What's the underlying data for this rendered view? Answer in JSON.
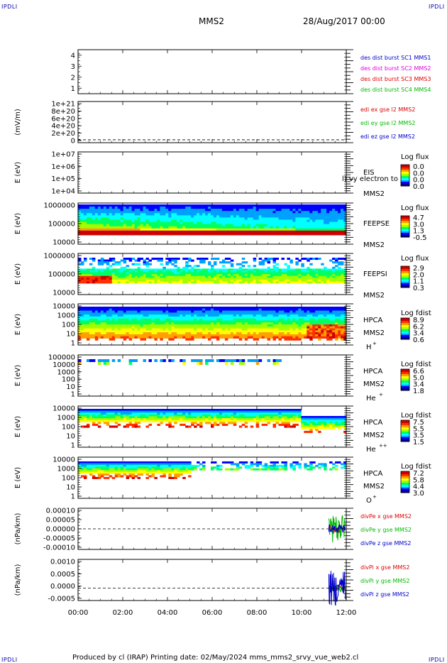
{
  "corner_label": "IPDLI",
  "header": {
    "mission": "MMS2",
    "date": "28/Aug/2017 00:00"
  },
  "footer": {
    "text": "Produced by cl (IRAP)   Printing date: 02/May/2024   mms_mms2_srvy_vue_web2.cl"
  },
  "time_axis": {
    "ticks": [
      "00:00",
      "02:00",
      "04:00",
      "06:00",
      "08:00",
      "10:00",
      "12:00"
    ]
  },
  "colors": {
    "blue": "#0000cc",
    "magenta": "#dd00dd",
    "red": "#dd0000",
    "green": "#00bb00",
    "colormap": [
      "#000080",
      "#0000ff",
      "#00a0ff",
      "#00ffff",
      "#00ff60",
      "#a0ff00",
      "#ffff00",
      "#ffa000",
      "#ff3000",
      "#cc0000"
    ]
  },
  "chart_data": [
    {
      "type": "line",
      "ylabel": "",
      "ylim": [
        0.5,
        4.5
      ],
      "yticks": [
        "4",
        "3",
        "2",
        "1"
      ],
      "legend": [
        {
          "name": "des dist burst SC1 MMS1",
          "color": "#0000cc"
        },
        {
          "name": "des dist burst SC2 MMS2",
          "color": "#dd00dd"
        },
        {
          "name": "des dist burst SC3 MMS3",
          "color": "#dd0000"
        },
        {
          "name": "des dist burst SC4 MMS4",
          "color": "#00bb00"
        }
      ]
    },
    {
      "type": "line",
      "ylabel": "(mV/m)",
      "yticks": [
        "1e+21",
        "8e+20",
        "6e+20",
        "4e+20",
        "2e+20",
        "0"
      ],
      "zero_line": true,
      "legend": [
        {
          "name": "edi ex gse l2 MMS2",
          "color": "#dd0000"
        },
        {
          "name": "edi ey gse l2 MMS2",
          "color": "#00bb00"
        },
        {
          "name": "edi ez gse l2 MMS2",
          "color": "#0000cc"
        }
      ]
    },
    {
      "type": "heatmap",
      "ylabel": "E (eV)",
      "yticks": [
        "1e+07",
        "1e+06",
        "1e+05",
        "1e+04"
      ],
      "instrument": [
        "EIS",
        "MMS2"
      ],
      "overlay_text": "l) vy electron to",
      "cbar_title": "Log flux",
      "cbar_ticks": [
        "0.0",
        "0.0",
        "0.0",
        "0.0"
      ]
    },
    {
      "type": "heatmap",
      "ylabel": "E (eV)",
      "yticks": [
        "1000000",
        "100000",
        "10000"
      ],
      "instrument": [
        "FEEPSE",
        "MMS2"
      ],
      "cbar_title": "Log flux",
      "cbar_ticks": [
        "4.7",
        "3.0",
        "1.3",
        "-0.5"
      ]
    },
    {
      "type": "heatmap",
      "ylabel": "E (eV)",
      "yticks": [
        "1000000",
        "100000",
        "10000"
      ],
      "instrument": [
        "FEEPSI",
        "MMS2"
      ],
      "cbar_title": "Log flux",
      "cbar_ticks": [
        "2.9",
        "2.0",
        "1.1",
        "0.3"
      ]
    },
    {
      "type": "heatmap",
      "ylabel": "E (eV)",
      "yticks": [
        "10000",
        "1000",
        "100",
        "10",
        "1"
      ],
      "instrument": [
        "HPCA",
        "MMS2"
      ],
      "species": "H",
      "charge": "+",
      "cbar_title": "Log fdist",
      "cbar_ticks": [
        "8.9",
        "6.2",
        "3.4",
        "0.6"
      ]
    },
    {
      "type": "heatmap",
      "ylabel": "E (eV)",
      "yticks": [
        "100000",
        "10000",
        "1000",
        "100",
        "10",
        "1"
      ],
      "instrument": [
        "HPCA",
        "MMS2"
      ],
      "species": "He",
      "charge": "+",
      "cbar_title": "Log fdist",
      "cbar_ticks": [
        "6.6",
        "5.0",
        "3.4",
        "1.8"
      ]
    },
    {
      "type": "heatmap",
      "ylabel": "E (eV)",
      "yticks": [
        "10000",
        "1000",
        "100",
        "10",
        "1"
      ],
      "instrument": [
        "HPCA",
        "MMS2"
      ],
      "species": "He",
      "charge": "++",
      "cbar_title": "Log fdist",
      "cbar_ticks": [
        "7.5",
        "5.5",
        "3.5",
        "1.5"
      ]
    },
    {
      "type": "heatmap",
      "ylabel": "E (eV)",
      "yticks": [
        "10000",
        "1000",
        "100",
        "10",
        "1"
      ],
      "instrument": [
        "HPCA",
        "MMS2"
      ],
      "species": "O",
      "charge": "+",
      "cbar_title": "Log fdist",
      "cbar_ticks": [
        "7.2",
        "5.8",
        "4.4",
        "3.0"
      ]
    },
    {
      "type": "line",
      "ylabel": "(nPa/km)",
      "yticks": [
        "0.00010",
        "0.00005",
        "0.00000",
        "-0.00005",
        "-0.00010"
      ],
      "zero_line": true,
      "legend": [
        {
          "name": "divPe x gse MMS2",
          "color": "#dd0000"
        },
        {
          "name": "divPe y gse MMS2",
          "color": "#00bb00"
        },
        {
          "name": "divPe z gse MMS2",
          "color": "#0000cc"
        }
      ]
    },
    {
      "type": "line",
      "ylabel": "(nPa/km)",
      "yticks": [
        "0.0010",
        "0.0005",
        "0.0000",
        "-0.0005"
      ],
      "zero_line": true,
      "legend": [
        {
          "name": "divPi x gse MMS2",
          "color": "#dd0000"
        },
        {
          "name": "divPi y gse MMS2",
          "color": "#00bb00"
        },
        {
          "name": "divPi z gse MMS2",
          "color": "#0000cc"
        }
      ]
    }
  ]
}
